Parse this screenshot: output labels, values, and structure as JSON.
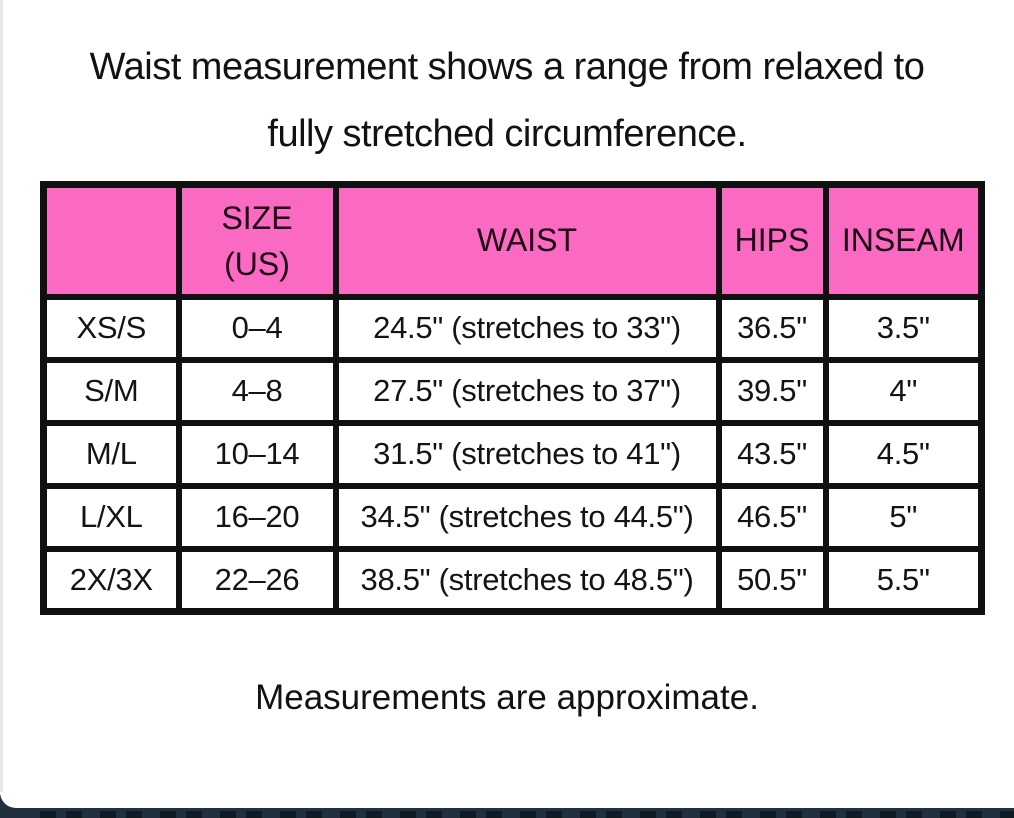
{
  "title": {
    "line1": "Waist measurement shows a range from relaxed to",
    "line2": "fully stretched circumference."
  },
  "table": {
    "headers": [
      {
        "line1": ""
      },
      {
        "line1": "SIZE",
        "line2": "(US)"
      },
      {
        "line1": "WAIST"
      },
      {
        "line1": "HIPS"
      },
      {
        "line1": "INSEAM"
      }
    ]
  },
  "chart_data": {
    "type": "table",
    "title": "Waist measurement shows a range from relaxed to fully stretched circumference.",
    "columns": [
      "",
      "SIZE (US)",
      "WAIST",
      "HIPS",
      "INSEAM"
    ],
    "rows": [
      [
        "XS/S",
        "0–4",
        "24.5\" (stretches to 33\")",
        "36.5\"",
        "3.5\""
      ],
      [
        "S/M",
        "4–8",
        "27.5\" (stretches to 37\")",
        "39.5\"",
        "4\""
      ],
      [
        "M/L",
        "10–14",
        "31.5\" (stretches to 41\")",
        "43.5\"",
        "4.5\""
      ],
      [
        "L/XL",
        "16–20",
        "34.5\" (stretches to 44.5\")",
        "46.5\"",
        "5\""
      ],
      [
        "2X/3X",
        "22–26",
        "38.5\" (stretches to 48.5\")",
        "50.5\"",
        "5.5\""
      ]
    ],
    "note": "Measurements are approximate."
  },
  "footer": "Measurements are approximate.",
  "colors": {
    "header_pink": "#fa69c2",
    "border_black": "#101010",
    "bottom_bar_navy": "#20303e",
    "page_background": "#ffffff"
  }
}
